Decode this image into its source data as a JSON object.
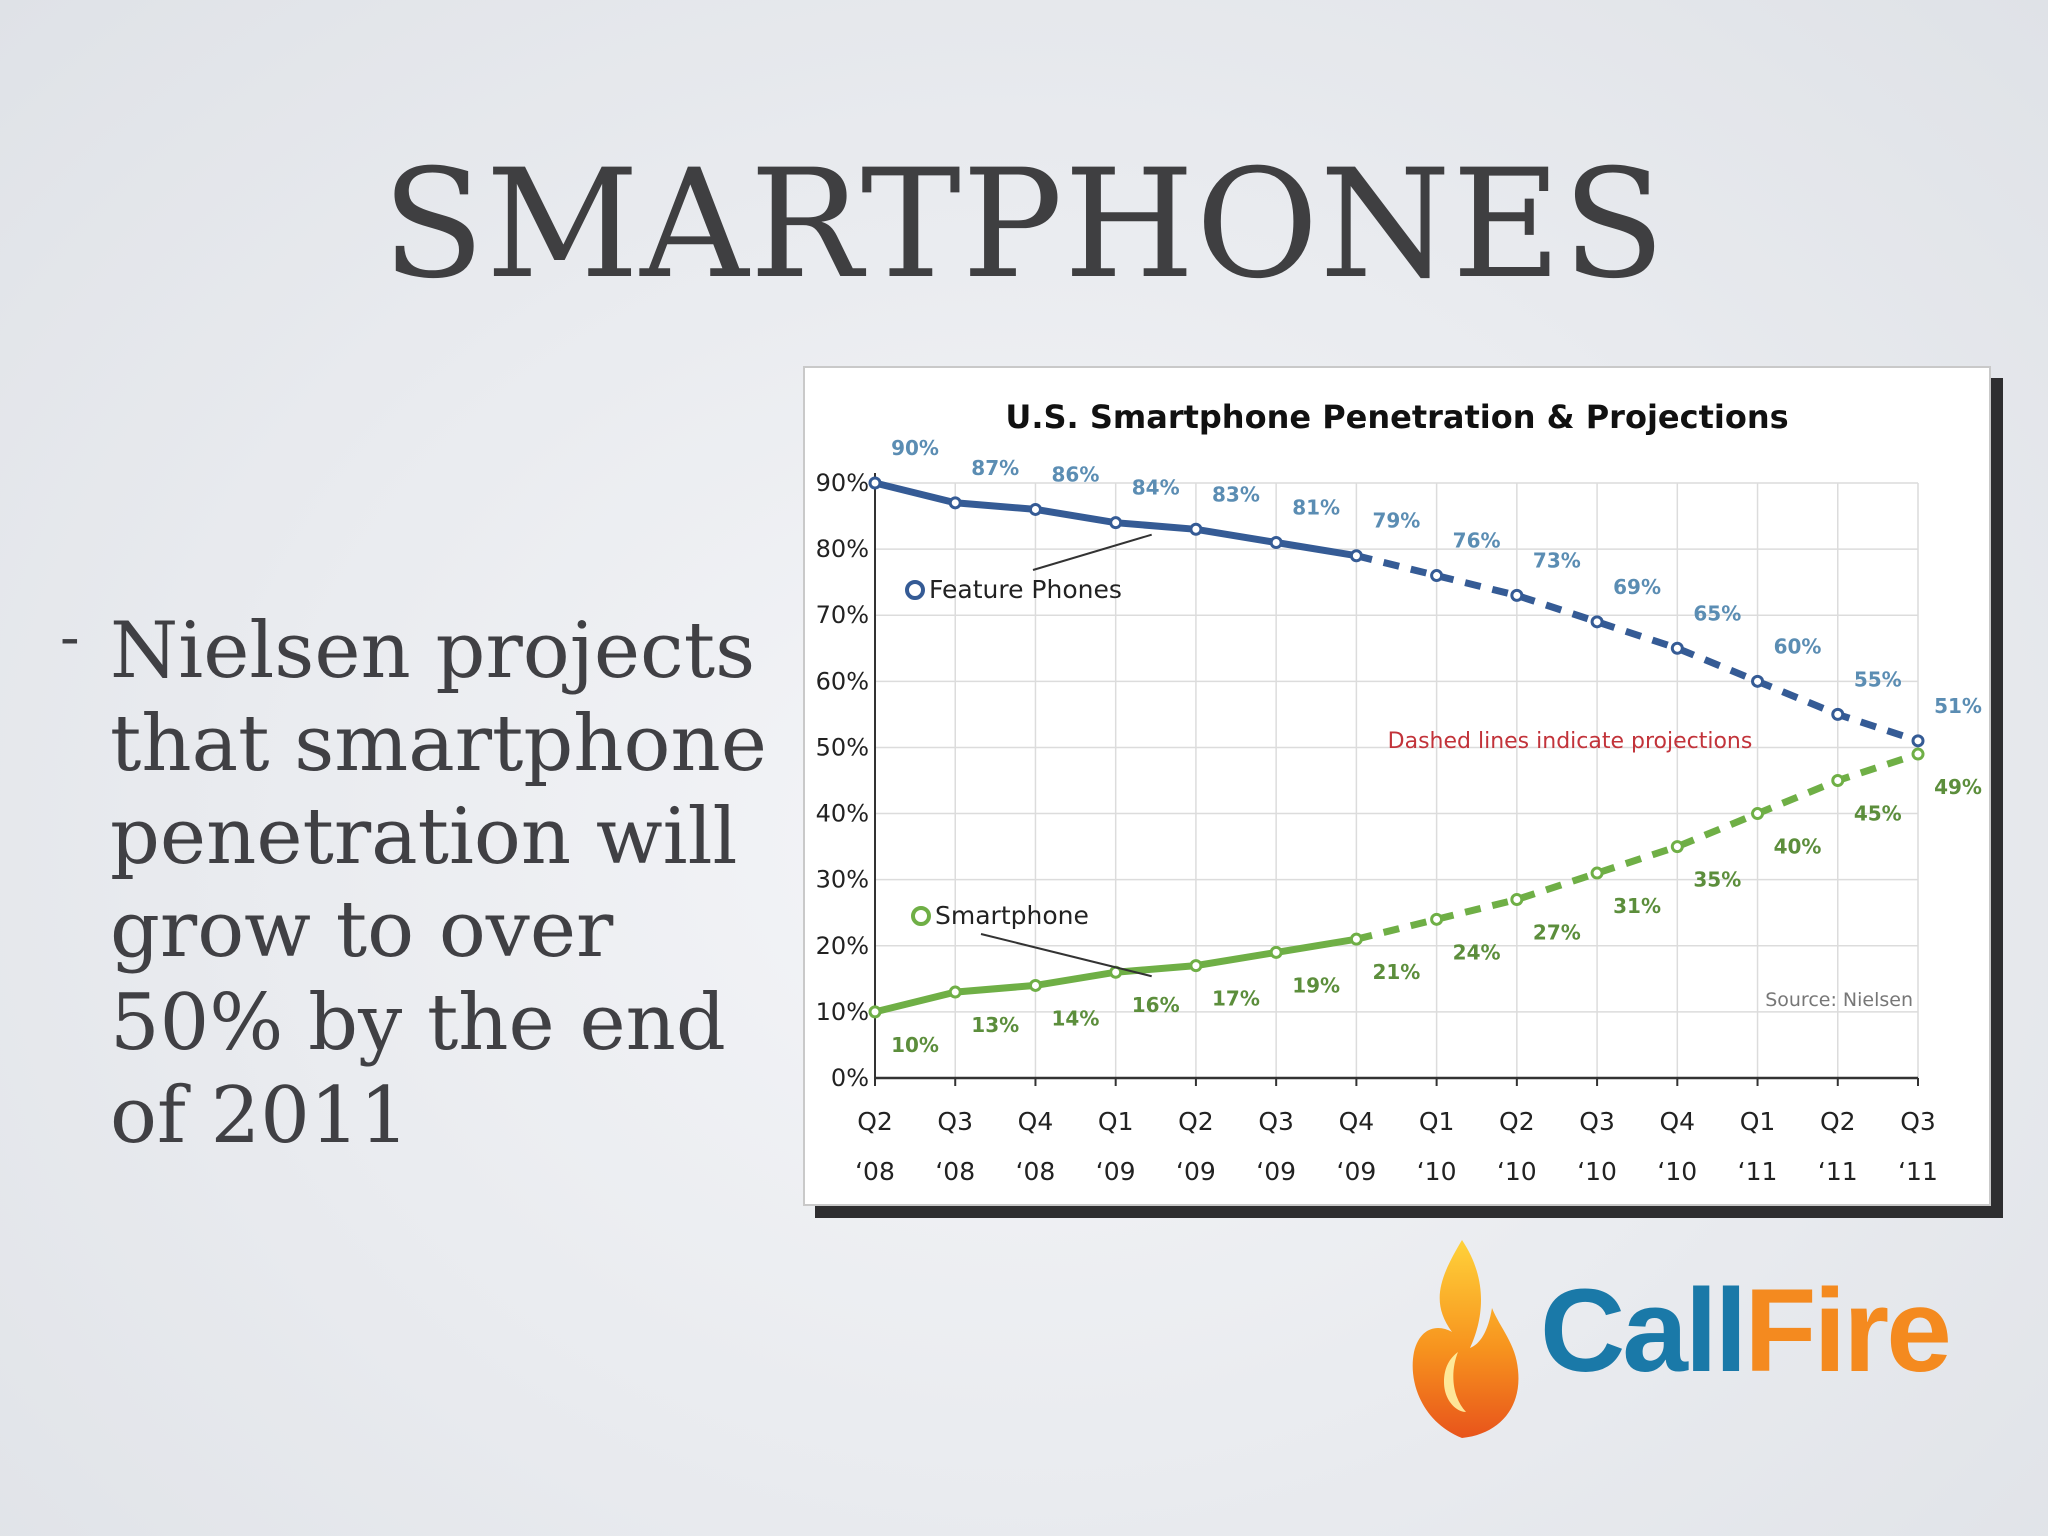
{
  "slide": {
    "title": "SMARTPHONES",
    "bullet_marker": "-",
    "bullet_text": "Nielsen projects that smartphone penetration will grow to over 50% by the end of 2011"
  },
  "logo": {
    "part1": "Call",
    "part2": "Fire",
    "colors": {
      "call": "#1a79a8",
      "fire": "#f48a1f"
    }
  },
  "chart_data": {
    "type": "line",
    "title": "U.S. Smartphone Penetration & Projections",
    "categories": [
      [
        "Q2",
        "‘08"
      ],
      [
        "Q3",
        "‘08"
      ],
      [
        "Q4",
        "‘08"
      ],
      [
        "Q1",
        "‘09"
      ],
      [
        "Q2",
        "‘09"
      ],
      [
        "Q3",
        "‘09"
      ],
      [
        "Q4",
        "‘09"
      ],
      [
        "Q1",
        "‘10"
      ],
      [
        "Q2",
        "‘10"
      ],
      [
        "Q3",
        "‘10"
      ],
      [
        "Q4",
        "‘10"
      ],
      [
        "Q1",
        "‘11"
      ],
      [
        "Q2",
        "‘11"
      ],
      [
        "Q3",
        "‘11"
      ]
    ],
    "ylim": [
      0,
      90
    ],
    "yticks": [
      "0%",
      "10%",
      "20%",
      "30%",
      "40%",
      "50%",
      "60%",
      "70%",
      "80%",
      "90%"
    ],
    "series": [
      {
        "name": "Feature Phones",
        "color": "#355b95",
        "label_color": "#5b8db3",
        "values": [
          90,
          87,
          86,
          84,
          83,
          81,
          79,
          76,
          73,
          69,
          65,
          60,
          55,
          51
        ],
        "labels": [
          "90%",
          "87%",
          "86%",
          "84%",
          "83%",
          "81%",
          "79%",
          "76%",
          "73%",
          "69%",
          "65%",
          "60%",
          "55%",
          "51%"
        ],
        "projected_from_index": 6
      },
      {
        "name": "Smartphone",
        "color": "#6faf46",
        "label_color": "#5c8e3c",
        "values": [
          10,
          13,
          14,
          16,
          17,
          19,
          21,
          24,
          27,
          31,
          35,
          40,
          45,
          49
        ],
        "labels": [
          "10%",
          "13%",
          "14%",
          "16%",
          "17%",
          "19%",
          "21%",
          "24%",
          "27%",
          "31%",
          "35%",
          "40%",
          "45%",
          "49%"
        ],
        "projected_from_index": 6
      }
    ],
    "annotations": {
      "projection_note": "Dashed lines indicate projections",
      "source": "Source: Nielsen"
    },
    "grid": true
  }
}
